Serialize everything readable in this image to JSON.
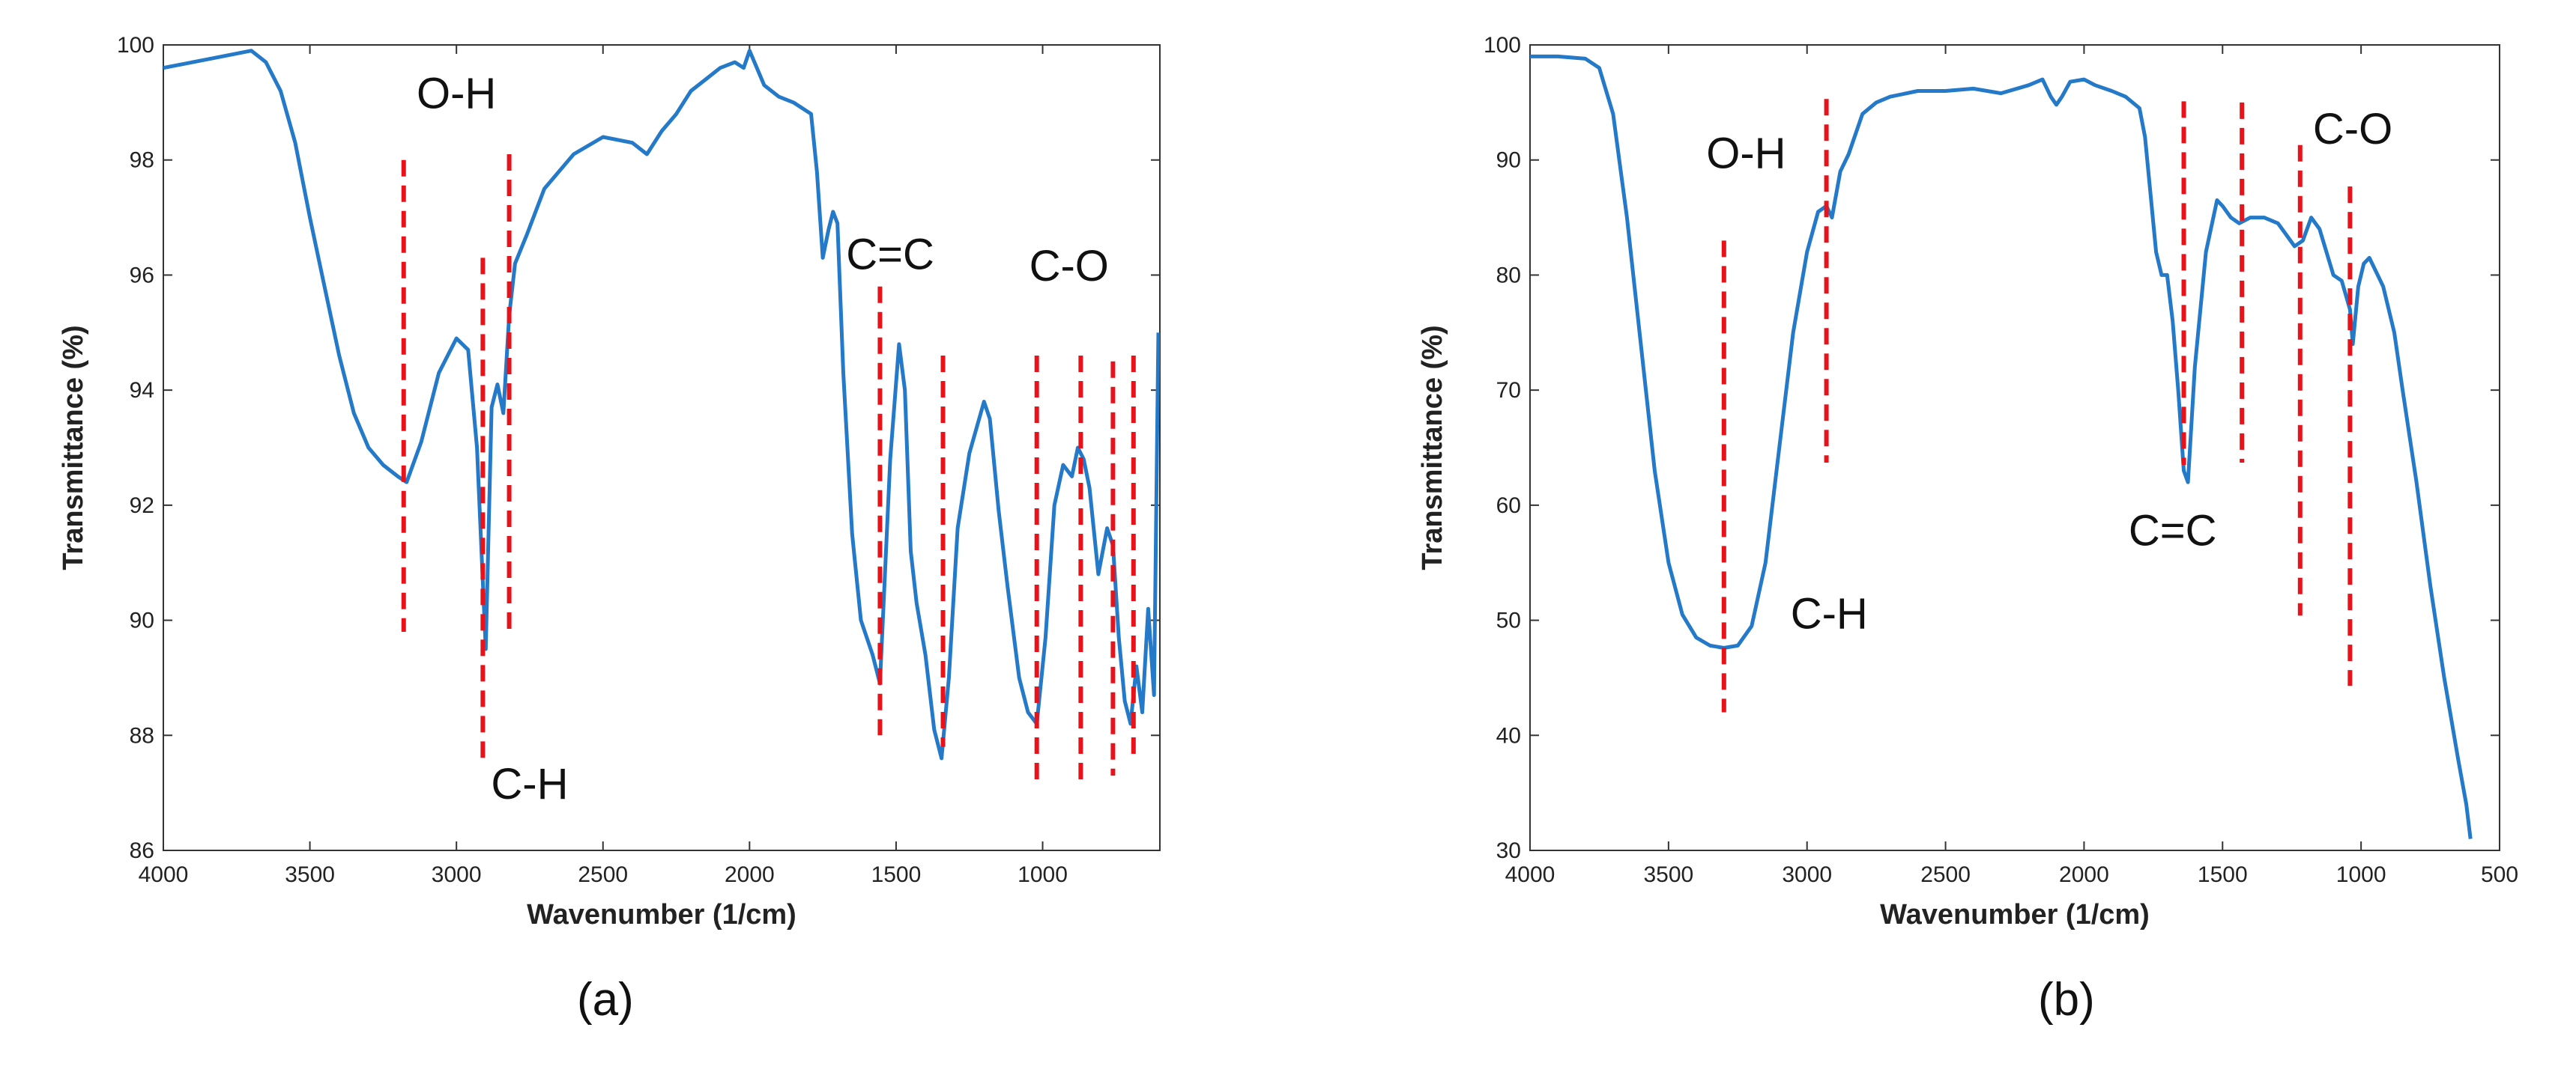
{
  "colors": {
    "line": "#2479c8",
    "marker": "#e8121b",
    "axis": "#333333"
  },
  "captions": {
    "a": "(a)",
    "b": "(b)"
  },
  "chart_data": [
    {
      "type": "line",
      "xlabel": "Wavenumber (1/cm)",
      "ylabel": "Transmittance (%)",
      "xlim": [
        4000,
        600
      ],
      "ylim": [
        86,
        100
      ],
      "xticks": [
        4000,
        3500,
        3000,
        2500,
        2000,
        1500,
        1000
      ],
      "yticks": [
        86,
        88,
        90,
        92,
        94,
        96,
        98,
        100
      ],
      "grid": false,
      "series": [
        {
          "x": [
            4000,
            3900,
            3800,
            3700,
            3650,
            3600,
            3550,
            3500,
            3450,
            3400,
            3350,
            3300,
            3250,
            3200,
            3170,
            3120,
            3060,
            3000,
            2960,
            2930,
            2900,
            2880,
            2860,
            2840,
            2820,
            2800,
            2760,
            2700,
            2600,
            2500,
            2400,
            2350,
            2300,
            2250,
            2200,
            2150,
            2100,
            2050,
            2020,
            2000,
            1950,
            1900,
            1850,
            1790,
            1770,
            1750,
            1730,
            1715,
            1700,
            1680,
            1650,
            1620,
            1580,
            1555,
            1520,
            1490,
            1470,
            1450,
            1430,
            1400,
            1370,
            1345,
            1320,
            1290,
            1250,
            1200,
            1180,
            1150,
            1120,
            1080,
            1050,
            1020,
            990,
            960,
            930,
            900,
            880,
            860,
            840,
            810,
            780,
            760,
            740,
            720,
            700,
            680,
            660,
            640,
            620,
            605
          ],
          "y": [
            99.6,
            99.7,
            99.8,
            99.9,
            99.7,
            99.2,
            98.3,
            97.0,
            95.8,
            94.6,
            93.6,
            93.0,
            92.7,
            92.5,
            92.4,
            93.1,
            94.3,
            94.9,
            94.7,
            93.0,
            89.5,
            93.7,
            94.1,
            93.6,
            95.3,
            96.2,
            96.7,
            97.5,
            98.1,
            98.4,
            98.3,
            98.1,
            98.5,
            98.8,
            99.2,
            99.4,
            99.6,
            99.7,
            99.6,
            99.9,
            99.3,
            99.1,
            99.0,
            98.8,
            97.8,
            96.3,
            96.8,
            97.1,
            96.9,
            94.3,
            91.5,
            90.0,
            89.4,
            88.9,
            92.8,
            94.8,
            94.0,
            91.2,
            90.3,
            89.4,
            88.1,
            87.6,
            89.0,
            91.6,
            92.9,
            93.8,
            93.5,
            91.9,
            90.6,
            89.0,
            88.4,
            88.2,
            89.7,
            92.0,
            92.7,
            92.5,
            93.0,
            92.8,
            92.3,
            90.8,
            91.6,
            91.3,
            89.7,
            88.6,
            88.2,
            89.2,
            88.4,
            90.2,
            88.7,
            95.0
          ]
        }
      ],
      "markers": [
        3180,
        2910,
        2820,
        1555,
        1340,
        1020,
        870,
        760,
        690
      ],
      "marker_tops": [
        98.0,
        96.3,
        98.1,
        95.8,
        94.6,
        94.6,
        94.6,
        94.5,
        94.6
      ],
      "marker_bottoms": [
        89.8,
        87.5,
        89.8,
        88.0,
        87.8,
        87.1,
        87.1,
        87.3,
        87.6
      ],
      "annotations": [
        {
          "text": "O-H",
          "x": 3000,
          "y": 98.9
        },
        {
          "text": "C-H",
          "x": 2750,
          "y": 86.9
        },
        {
          "text": "C=C",
          "x": 1520,
          "y": 96.1
        },
        {
          "text": "C-O",
          "x": 910,
          "y": 95.9
        }
      ]
    },
    {
      "type": "line",
      "xlabel": "Wavenumber (1/cm)",
      "ylabel": "Transmittance (%)",
      "xlim": [
        4000,
        500
      ],
      "ylim": [
        30,
        100
      ],
      "xticks": [
        4000,
        3500,
        3000,
        2500,
        2000,
        1500,
        1000,
        500
      ],
      "yticks": [
        30,
        40,
        50,
        60,
        70,
        80,
        90,
        100
      ],
      "grid": false,
      "series": [
        {
          "x": [
            4000,
            3900,
            3800,
            3750,
            3700,
            3650,
            3600,
            3550,
            3500,
            3450,
            3400,
            3350,
            3300,
            3250,
            3200,
            3150,
            3100,
            3050,
            3000,
            2960,
            2930,
            2910,
            2880,
            2850,
            2800,
            2750,
            2700,
            2600,
            2500,
            2400,
            2300,
            2200,
            2150,
            2120,
            2100,
            2080,
            2050,
            2000,
            1960,
            1900,
            1850,
            1800,
            1780,
            1760,
            1740,
            1720,
            1700,
            1680,
            1660,
            1640,
            1625,
            1600,
            1560,
            1520,
            1500,
            1470,
            1440,
            1400,
            1350,
            1300,
            1270,
            1240,
            1210,
            1180,
            1150,
            1100,
            1070,
            1040,
            1030,
            1010,
            990,
            970,
            950,
            920,
            880,
            850,
            800,
            750,
            700,
            650,
            620,
            605
          ],
          "y": [
            99.0,
            99.0,
            98.8,
            98.0,
            94.0,
            85.0,
            74.0,
            63.0,
            55.0,
            50.5,
            48.5,
            47.8,
            47.6,
            47.8,
            49.5,
            55.0,
            65.0,
            75.0,
            82.0,
            85.5,
            86.0,
            85.0,
            89.0,
            90.5,
            94.0,
            95.0,
            95.5,
            96.0,
            96.0,
            96.2,
            95.8,
            96.5,
            97.0,
            95.5,
            94.8,
            95.5,
            96.8,
            97.0,
            96.5,
            96.0,
            95.5,
            94.5,
            92.0,
            87.0,
            82.0,
            80.0,
            80.0,
            76.0,
            70.0,
            63.0,
            62.0,
            72.0,
            82.0,
            86.5,
            86.0,
            85.0,
            84.5,
            85.0,
            85.0,
            84.5,
            83.5,
            82.5,
            83.0,
            85.0,
            84.0,
            80.0,
            79.5,
            77.0,
            74.0,
            79.0,
            81.0,
            81.5,
            80.5,
            79.0,
            75.0,
            70.0,
            62.0,
            53.0,
            45.0,
            38.0,
            34.0,
            31.0
          ]
        }
      ],
      "markers": [
        3300,
        2930,
        1640,
        1430,
        1220,
        1040
      ],
      "marker_tops": [
        83.0,
        95.3,
        95.1,
        95.0,
        91.3,
        87.7
      ],
      "marker_bottoms": [
        42.0,
        63.7,
        63.5,
        63.7,
        50.4,
        44.3
      ],
      "annotations": [
        {
          "text": "O-H",
          "x": 3220,
          "y": 89.3
        },
        {
          "text": "C-H",
          "x": 2920,
          "y": 49.3
        },
        {
          "text": "C=C",
          "x": 1680,
          "y": 56.5
        },
        {
          "text": "C-O",
          "x": 1030,
          "y": 91.4
        }
      ]
    }
  ]
}
